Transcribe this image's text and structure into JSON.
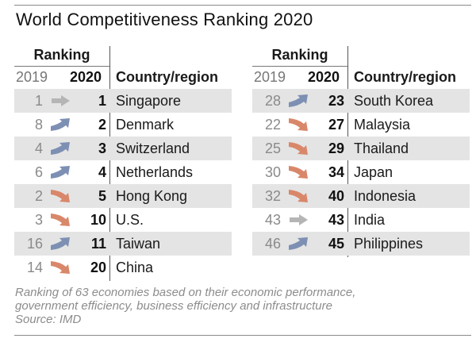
{
  "title": "World Competitiveness Ranking 2020",
  "colors": {
    "up": "#7d8fb3",
    "down": "#d9876a",
    "same": "#b5b5b5",
    "shade": "#e4e4e4",
    "rule": "#8a8a8a"
  },
  "headers": {
    "ranking": "Ranking",
    "year_prev": "2019",
    "year_curr": "2020",
    "country": "Country/region"
  },
  "footer": {
    "line1": "Ranking of 63 economies based on their economic performance,",
    "line2": "government efficiency, business efficiency and infrastructure",
    "source": "Source: IMD"
  },
  "chart_data": {
    "type": "table",
    "title": "World Competitiveness Ranking 2020",
    "columns": [
      "2019",
      "2020",
      "Country/region"
    ],
    "rows": [
      {
        "rank_2019": "1",
        "rank_2020": "1",
        "country": "Singapore",
        "trend": "same"
      },
      {
        "rank_2019": "8",
        "rank_2020": "2",
        "country": "Denmark",
        "trend": "up"
      },
      {
        "rank_2019": "4",
        "rank_2020": "3",
        "country": "Switzerland",
        "trend": "up"
      },
      {
        "rank_2019": "6",
        "rank_2020": "4",
        "country": "Netherlands",
        "trend": "up"
      },
      {
        "rank_2019": "2",
        "rank_2020": "5",
        "country": "Hong Kong",
        "trend": "down"
      },
      {
        "rank_2019": "3",
        "rank_2020": "10",
        "country": "U.S.",
        "trend": "down"
      },
      {
        "rank_2019": "16",
        "rank_2020": "11",
        "country": "Taiwan",
        "trend": "up"
      },
      {
        "rank_2019": "14",
        "rank_2020": "20",
        "country": "China",
        "trend": "down"
      },
      {
        "rank_2019": "28",
        "rank_2020": "23",
        "country": "South Korea",
        "trend": "up"
      },
      {
        "rank_2019": "22",
        "rank_2020": "27",
        "country": "Malaysia",
        "trend": "down"
      },
      {
        "rank_2019": "25",
        "rank_2020": "29",
        "country": "Thailand",
        "trend": "down"
      },
      {
        "rank_2019": "30",
        "rank_2020": "34",
        "country": "Japan",
        "trend": "down"
      },
      {
        "rank_2019": "32",
        "rank_2020": "40",
        "country": "Indonesia",
        "trend": "down"
      },
      {
        "rank_2019": "43",
        "rank_2020": "43",
        "country": "India",
        "trend": "same"
      },
      {
        "rank_2019": "46",
        "rank_2020": "45",
        "country": "Philippines",
        "trend": "up"
      }
    ],
    "left_rows": 8,
    "right_rows": 7
  }
}
